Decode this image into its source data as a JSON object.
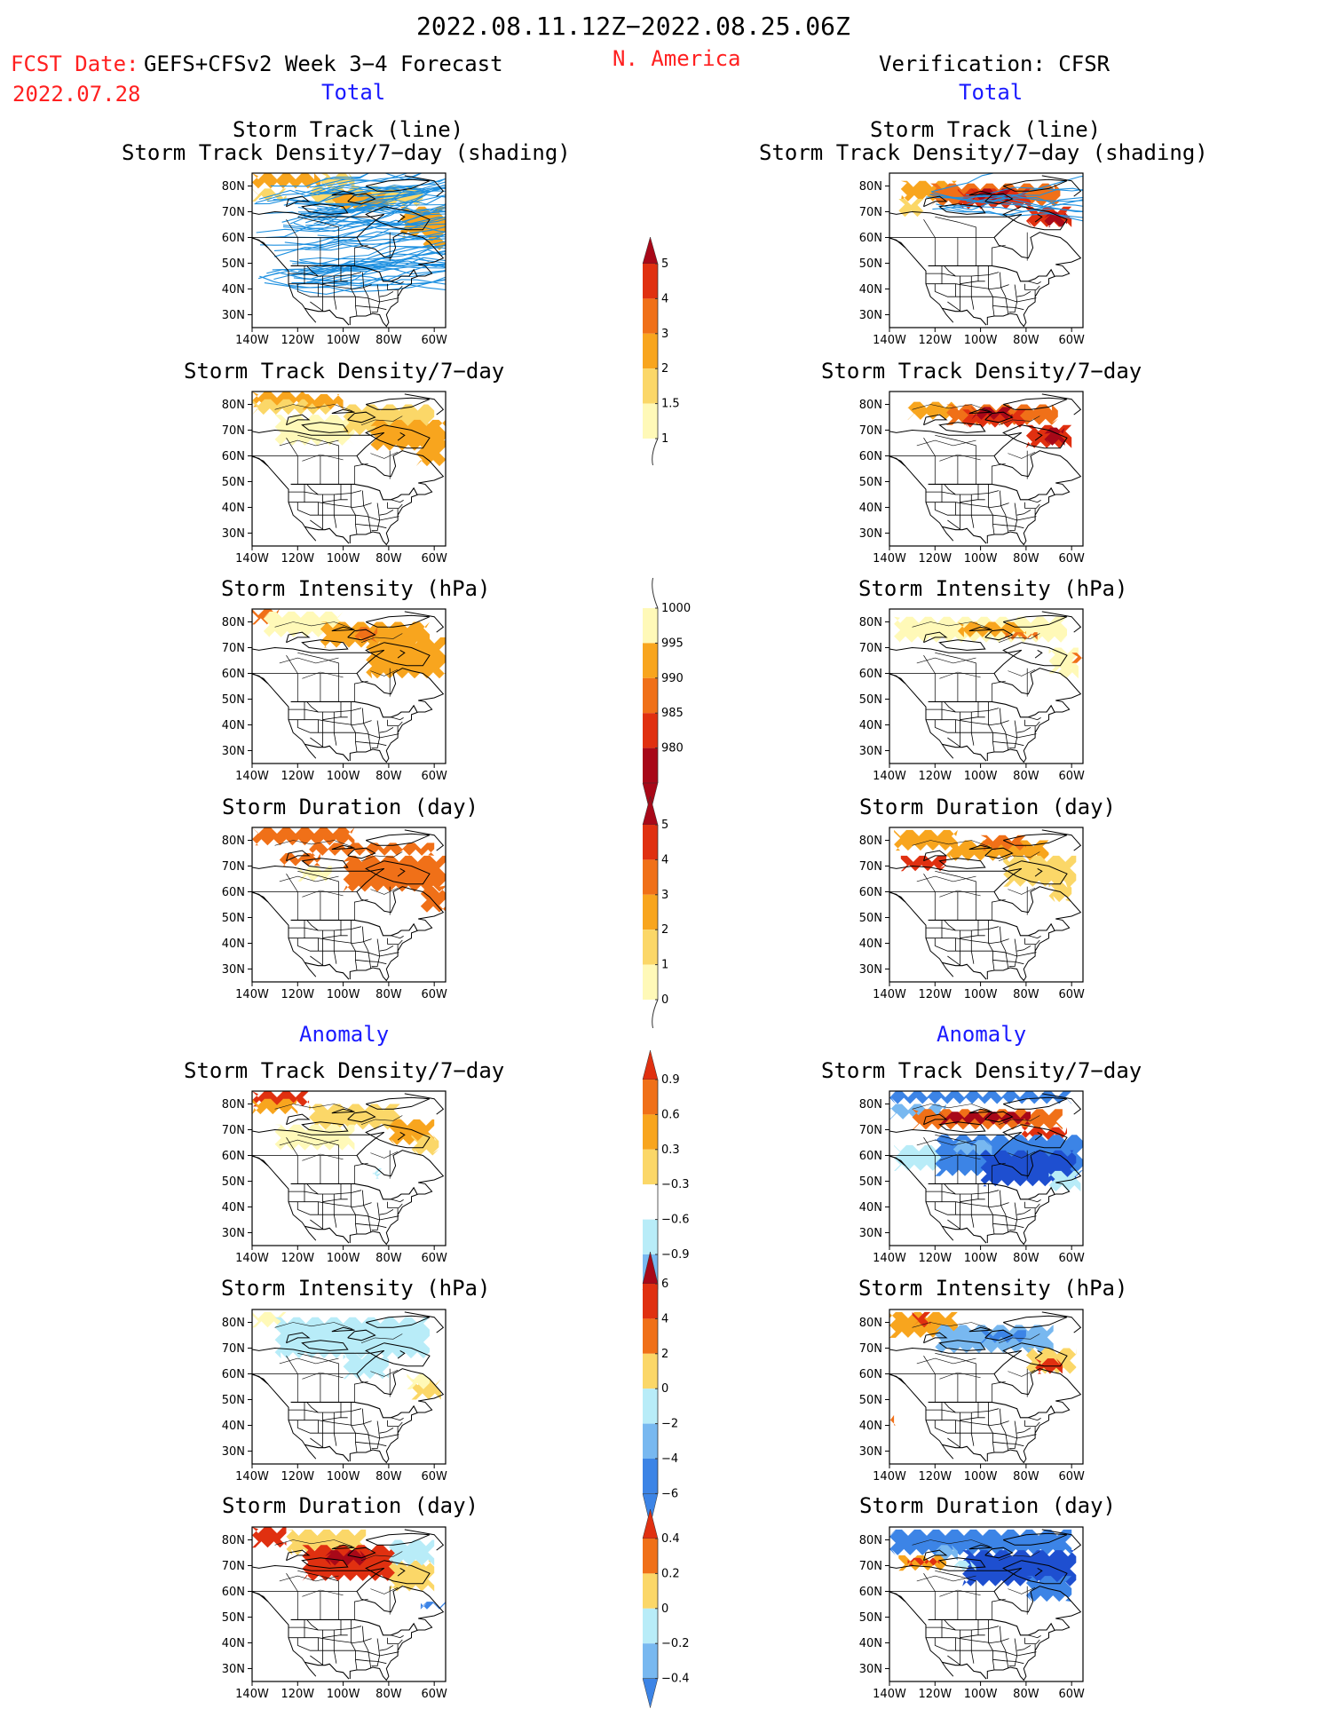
{
  "header": {
    "date_range": "2022.08.11.12Z−2022.08.25.06Z",
    "fcst_label": "FCST Date:",
    "model": "GEFS+CFSv2 Week 3−4 Forecast",
    "fcst_date": "2022.07.28",
    "region": "N. America",
    "verification": "Verification: CFSR"
  },
  "sections": {
    "total_left": "Total",
    "total_right": "Total",
    "anomaly_left": "Anomaly",
    "anomaly_right": "Anomaly"
  },
  "panel_titles": {
    "track_line": "Storm Track (line)",
    "track_shading": "Storm Track Density/7−day (shading)",
    "density": "Storm Track Density/7−day",
    "intensity": "Storm Intensity (hPa)",
    "duration": "Storm Duration (day)"
  },
  "axes": {
    "lat_ticks": [
      "80N",
      "70N",
      "60N",
      "50N",
      "40N",
      "30N"
    ],
    "lon_ticks": [
      "140W",
      "120W",
      "100W",
      "80W",
      "60W"
    ]
  },
  "colors": {
    "blue_label": "#1a1aff",
    "red_label": "#ff2020",
    "track_line": "#1e90e0",
    "warm": [
      "#fff9b8",
      "#fbd768",
      "#f8a51e",
      "#f07018",
      "#e03010",
      "#a80818"
    ],
    "cool": [
      "#ffffff",
      "#b8ecf8",
      "#78b8f0",
      "#3c84e6",
      "#1e4fd0"
    ]
  },
  "chart_data": [
    {
      "type": "heatmap",
      "title": "Storm Track (line) / Storm Track Density/7−day (shading)",
      "source": "GEFS+CFSv2",
      "field": "total",
      "overlay": "storm tracks (lines)",
      "ylim": [
        25,
        85
      ],
      "xlim": [
        -140,
        -55
      ]
    },
    {
      "type": "heatmap",
      "title": "Storm Track (line) / Storm Track Density/7−day (shading)",
      "source": "CFSR",
      "field": "total",
      "overlay": "storm tracks (lines)",
      "ylim": [
        25,
        85
      ],
      "xlim": [
        -140,
        -55
      ]
    },
    {
      "type": "heatmap",
      "title": "Storm Track Density/7−day",
      "source": "GEFS+CFSv2",
      "field": "total"
    },
    {
      "type": "heatmap",
      "title": "Storm Track Density/7−day",
      "source": "CFSR",
      "field": "total"
    },
    {
      "type": "heatmap",
      "title": "Storm Intensity (hPa)",
      "source": "GEFS+CFSv2",
      "field": "total"
    },
    {
      "type": "heatmap",
      "title": "Storm Intensity (hPa)",
      "source": "CFSR",
      "field": "total"
    },
    {
      "type": "heatmap",
      "title": "Storm Duration (day)",
      "source": "GEFS+CFSv2",
      "field": "total"
    },
    {
      "type": "heatmap",
      "title": "Storm Duration (day)",
      "source": "CFSR",
      "field": "total"
    },
    {
      "type": "heatmap",
      "title": "Storm Track Density/7−day",
      "source": "GEFS+CFSv2",
      "field": "anomaly"
    },
    {
      "type": "heatmap",
      "title": "Storm Track Density/7−day",
      "source": "CFSR",
      "field": "anomaly"
    },
    {
      "type": "heatmap",
      "title": "Storm Intensity (hPa)",
      "source": "GEFS+CFSv2",
      "field": "anomaly"
    },
    {
      "type": "heatmap",
      "title": "Storm Intensity (hPa)",
      "source": "CFSR",
      "field": "anomaly"
    },
    {
      "type": "heatmap",
      "title": "Storm Duration (day)",
      "source": "GEFS+CFSv2",
      "field": "anomaly"
    },
    {
      "type": "heatmap",
      "title": "Storm Duration (day)",
      "source": "CFSR",
      "field": "anomaly"
    }
  ],
  "colorbars": [
    {
      "name": "density-total",
      "labels": [
        "5",
        "4",
        "3",
        "2",
        "1.5",
        "1"
      ]
    },
    {
      "name": "intensity-total",
      "labels": [
        "1000",
        "995",
        "990",
        "985",
        "980"
      ]
    },
    {
      "name": "duration-total",
      "labels": [
        "5",
        "4",
        "3",
        "2",
        "1",
        "0"
      ]
    },
    {
      "name": "density-anomaly",
      "labels": [
        "0.9",
        "0.6",
        "0.3",
        "−0.3",
        "−0.6",
        "−0.9"
      ]
    },
    {
      "name": "intensity-anomaly",
      "labels": [
        "6",
        "4",
        "2",
        "0",
        "−2",
        "−4",
        "−6"
      ]
    },
    {
      "name": "duration-anomaly",
      "labels": [
        "0.4",
        "0.2",
        "0",
        "−0.2",
        "−0.4"
      ]
    }
  ]
}
